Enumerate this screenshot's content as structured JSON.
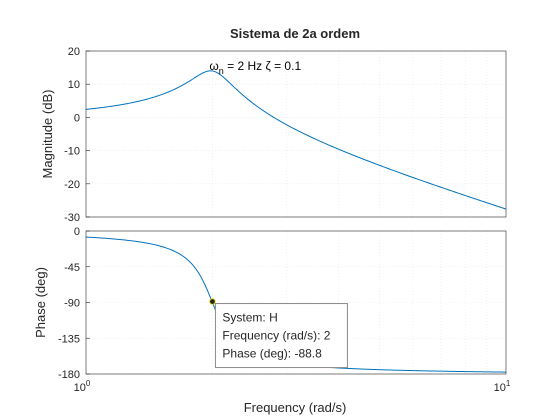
{
  "chart_data": {
    "type": "line",
    "title": "Sistema de 2a ordem",
    "xlabel": "Frequency  (rad/s)",
    "xscale": "log",
    "xlim": [
      1,
      10
    ],
    "x_ticks": [
      {
        "base": "10",
        "exp": "0"
      },
      {
        "base": "10",
        "exp": "1"
      }
    ],
    "grid": true,
    "line_color": "#0072bd",
    "magnitude": {
      "ylabel": "Magnitude (dB)",
      "ylim": [
        -30,
        20
      ],
      "yticks": [
        20,
        10,
        0,
        -10,
        -20,
        -30
      ],
      "annotation": {
        "omega": "ω",
        "sub": "n",
        "rest": " = 2 Hz ζ = 0.1",
        "x": 2.0,
        "y": 14
      }
    },
    "phase": {
      "ylabel": "Phase (deg)",
      "ylim": [
        -180,
        0
      ],
      "yticks": [
        0,
        -45,
        -90,
        -135,
        -180
      ]
    },
    "datatip": {
      "x": 2,
      "y": -88.8,
      "lines": [
        "System: H",
        "Frequency (rad/s): 2",
        "Phase (deg): -88.8"
      ]
    }
  }
}
